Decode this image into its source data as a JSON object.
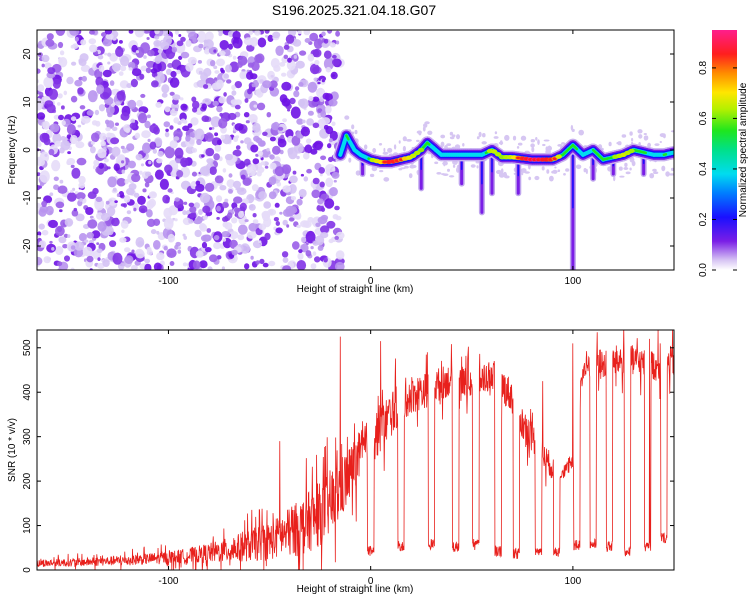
{
  "chart_data": [
    {
      "type": "heatmap",
      "title": "S196.2025.321.04.18.G07",
      "xlabel": "Height of straight line (km)",
      "ylabel": "Frequency (Hz)",
      "xlim": [
        -165,
        150
      ],
      "ylim": [
        -25,
        25
      ],
      "x_ticks": [
        -100,
        0,
        100
      ],
      "y_ticks": [
        -20,
        -10,
        0,
        10,
        20
      ],
      "colorbar": {
        "label": "Normalized spectral amplitude",
        "range": [
          0.0,
          0.95
        ],
        "ticks": [
          "0.0",
          "0.2",
          "0.4",
          "0.6",
          "0.8"
        ]
      },
      "noise_region_x": [
        -165,
        -15
      ],
      "signal_start_x": -15,
      "ridge": {
        "x": [
          -15,
          -12,
          -8,
          -5,
          0,
          5,
          10,
          15,
          20,
          25,
          28,
          35,
          45,
          55,
          60,
          65,
          70,
          80,
          90,
          95,
          100,
          105,
          110,
          115,
          120,
          125,
          130,
          135,
          140,
          145,
          150
        ],
        "freq": [
          -1,
          3,
          0,
          -1,
          -2,
          -2.5,
          -2.5,
          -2,
          -1.5,
          0,
          1.5,
          -1,
          -1,
          -1,
          0,
          -1.5,
          -1.5,
          -2,
          -2,
          -1,
          1,
          -1,
          0,
          -2,
          -1.5,
          -1,
          0,
          -0.5,
          -1,
          -1,
          -0.5
        ],
        "amp": [
          0.3,
          0.45,
          0.3,
          0.35,
          0.5,
          0.6,
          0.8,
          0.65,
          0.55,
          0.5,
          0.45,
          0.35,
          0.3,
          0.4,
          0.55,
          0.5,
          0.55,
          0.9,
          0.7,
          0.45,
          0.5,
          0.3,
          0.45,
          0.45,
          0.5,
          0.55,
          0.5,
          0.45,
          0.4,
          0.45,
          0.4
        ]
      },
      "spikes": [
        {
          "x": -4,
          "to_freq": -5
        },
        {
          "x": 25,
          "to_freq": -8
        },
        {
          "x": 45,
          "to_freq": -7
        },
        {
          "x": 55,
          "to_freq": -13
        },
        {
          "x": 60,
          "to_freq": -9
        },
        {
          "x": 73,
          "to_freq": -9
        },
        {
          "x": 100,
          "to_freq": -25
        },
        {
          "x": 110,
          "to_freq": -6
        },
        {
          "x": 120,
          "to_freq": -5
        },
        {
          "x": 135,
          "to_freq": -5
        }
      ]
    },
    {
      "type": "line",
      "xlabel": "Height of straight line (km)",
      "ylabel": "SNR (10 * v/v)",
      "xlim": [
        -165,
        150
      ],
      "ylim": [
        0,
        540
      ],
      "x_ticks": [
        -100,
        0,
        100
      ],
      "y_ticks": [
        0,
        100,
        200,
        300,
        400,
        500
      ],
      "color": "#e8201c",
      "envelope": {
        "x": [
          -165,
          -140,
          -120,
          -100,
          -90,
          -80,
          -70,
          -60,
          -50,
          -45,
          -40,
          -35,
          -30,
          -25,
          -20,
          -15,
          -10,
          -5,
          0,
          5,
          10,
          15,
          20,
          25,
          30,
          40,
          50,
          60,
          70,
          75,
          80,
          85,
          90,
          95,
          100,
          105,
          110,
          115,
          120,
          130,
          140,
          150
        ],
        "mean": [
          15,
          18,
          22,
          28,
          32,
          38,
          45,
          55,
          65,
          75,
          85,
          95,
          110,
          125,
          150,
          180,
          220,
          260,
          290,
          320,
          350,
          380,
          395,
          400,
          410,
          430,
          420,
          440,
          390,
          330,
          300,
          260,
          230,
          220,
          240,
          450,
          470,
          460,
          470,
          470,
          460,
          470
        ],
        "spread": [
          10,
          12,
          14,
          18,
          22,
          28,
          35,
          45,
          55,
          60,
          70,
          80,
          85,
          90,
          95,
          90,
          80,
          70,
          70,
          70,
          65,
          60,
          55,
          50,
          50,
          45,
          45,
          45,
          50,
          50,
          45,
          40,
          35,
          20,
          20,
          50,
          45,
          45,
          45,
          45,
          45,
          45
        ]
      },
      "peaks": [
        {
          "x": -45,
          "y": 290
        },
        {
          "x": -15,
          "y": 525
        },
        {
          "x": -8,
          "y": 330
        },
        {
          "x": 5,
          "y": 515
        },
        {
          "x": 28,
          "y": 490
        },
        {
          "x": 45,
          "y": 480
        },
        {
          "x": 48,
          "y": 475
        },
        {
          "x": 85,
          "y": 425
        },
        {
          "x": 100,
          "y": 510
        },
        {
          "x": 112,
          "y": 535
        },
        {
          "x": 138,
          "y": 520
        }
      ],
      "dips": [
        {
          "x": 0,
          "y": 30
        },
        {
          "x": 15,
          "y": 40
        },
        {
          "x": 30,
          "y": 45
        },
        {
          "x": 42,
          "y": 40
        },
        {
          "x": 52,
          "y": 45
        },
        {
          "x": 63,
          "y": 30
        },
        {
          "x": 72,
          "y": 25
        },
        {
          "x": 83,
          "y": 30
        },
        {
          "x": 92,
          "y": 30
        },
        {
          "x": 102,
          "y": 45
        },
        {
          "x": 110,
          "y": 45
        },
        {
          "x": 118,
          "y": 40
        },
        {
          "x": 127,
          "y": 30
        },
        {
          "x": 137,
          "y": 40
        },
        {
          "x": 145,
          "y": 60
        }
      ]
    }
  ]
}
